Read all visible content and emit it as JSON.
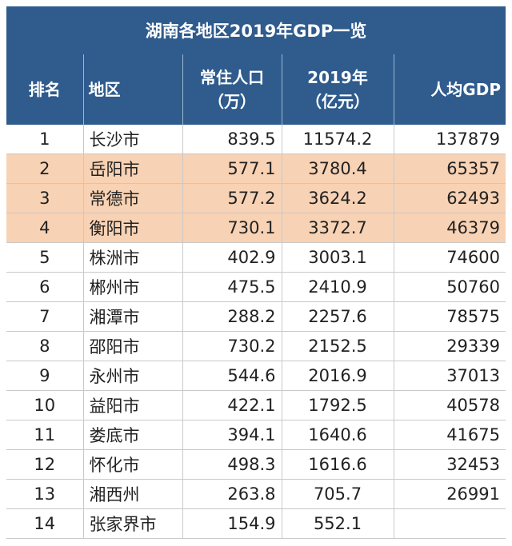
{
  "chart_data": {
    "type": "table",
    "title": "湖南各地区2019年GDP一览",
    "columns": [
      {
        "line1": "排名",
        "line2": ""
      },
      {
        "line1": "地区",
        "line2": ""
      },
      {
        "line1": "常住人口",
        "line2": "（万）"
      },
      {
        "line1": "2019年",
        "line2": "（亿元）"
      },
      {
        "line1": "人均GDP",
        "line2": ""
      }
    ],
    "rows": [
      {
        "rank": "1",
        "region": "长沙市",
        "population": "839.5",
        "gdp": "11574.2",
        "per_capita": "137879",
        "highlight": false
      },
      {
        "rank": "2",
        "region": "岳阳市",
        "population": "577.1",
        "gdp": "3780.4",
        "per_capita": "65357",
        "highlight": true
      },
      {
        "rank": "3",
        "region": "常德市",
        "population": "577.2",
        "gdp": "3624.2",
        "per_capita": "62493",
        "highlight": true
      },
      {
        "rank": "4",
        "region": "衡阳市",
        "population": "730.1",
        "gdp": "3372.7",
        "per_capita": "46379",
        "highlight": true
      },
      {
        "rank": "5",
        "region": "株洲市",
        "population": "402.9",
        "gdp": "3003.1",
        "per_capita": "74600",
        "highlight": false
      },
      {
        "rank": "6",
        "region": "郴州市",
        "population": "475.5",
        "gdp": "2410.9",
        "per_capita": "50760",
        "highlight": false
      },
      {
        "rank": "7",
        "region": "湘潭市",
        "population": "288.2",
        "gdp": "2257.6",
        "per_capita": "78575",
        "highlight": false
      },
      {
        "rank": "8",
        "region": "邵阳市",
        "population": "730.2",
        "gdp": "2152.5",
        "per_capita": "29339",
        "highlight": false
      },
      {
        "rank": "9",
        "region": "永州市",
        "population": "544.6",
        "gdp": "2016.9",
        "per_capita": "37013",
        "highlight": false
      },
      {
        "rank": "10",
        "region": "益阳市",
        "population": "422.1",
        "gdp": "1792.5",
        "per_capita": "40578",
        "highlight": false
      },
      {
        "rank": "11",
        "region": "娄底市",
        "population": "394.1",
        "gdp": "1640.6",
        "per_capita": "41675",
        "highlight": false
      },
      {
        "rank": "12",
        "region": "怀化市",
        "population": "498.3",
        "gdp": "1616.6",
        "per_capita": "32453",
        "highlight": false
      },
      {
        "rank": "13",
        "region": "湘西州",
        "population": "263.8",
        "gdp": "705.7",
        "per_capita": "26991",
        "highlight": false
      },
      {
        "rank": "14",
        "region": "张家界市",
        "population": "154.9",
        "gdp": "552.1",
        "per_capita": "",
        "highlight": false
      }
    ]
  },
  "colors": {
    "header_bg": "#2f5b8d",
    "header_text": "#ffffff",
    "highlight_row": "#f8d2b4",
    "grid": "#c9c9c9"
  }
}
